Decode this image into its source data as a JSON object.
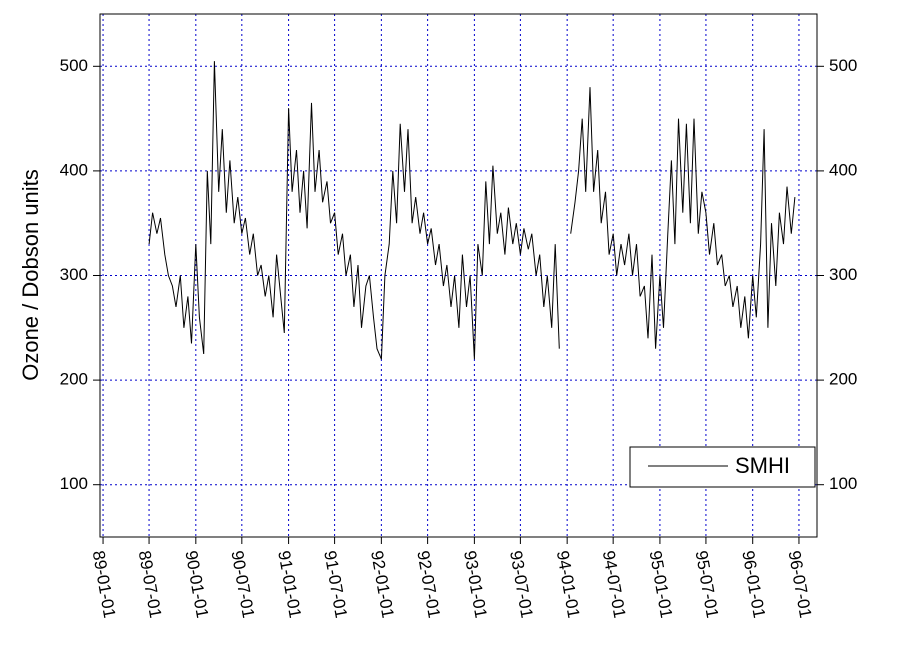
{
  "chart_data": {
    "type": "line",
    "y_label": "Ozone / Dobson units",
    "x": [
      "89-07-01",
      "89-07-15",
      "89-08-01",
      "89-08-15",
      "89-09-01",
      "89-09-15",
      "89-10-01",
      "89-10-15",
      "89-11-01",
      "89-11-15",
      "89-12-01",
      "89-12-15",
      "90-01-01",
      "90-01-15",
      "90-02-01",
      "90-02-15",
      "90-03-01",
      "90-03-15",
      "90-04-01",
      "90-04-15",
      "90-05-01",
      "90-05-15",
      "90-06-01",
      "90-06-15",
      "90-07-01",
      "90-07-15",
      "90-08-01",
      "90-08-15",
      "90-09-01",
      "90-09-15",
      "90-10-01",
      "90-10-15",
      "90-11-01",
      "90-11-15",
      "90-12-01",
      "90-12-15",
      "91-01-01",
      "91-01-15",
      "91-02-01",
      "91-02-15",
      "91-03-01",
      "91-03-15",
      "91-04-01",
      "91-04-15",
      "91-05-01",
      "91-05-15",
      "91-06-01",
      "91-06-15",
      "91-07-01",
      "91-07-15",
      "91-08-01",
      "91-08-15",
      "91-09-01",
      "91-09-15",
      "91-10-01",
      "91-10-15",
      "91-11-01",
      "91-11-15",
      "91-12-01",
      "91-12-15",
      "92-01-01",
      "92-01-15",
      "92-02-01",
      "92-02-15",
      "92-03-01",
      "92-03-15",
      "92-04-01",
      "92-04-15",
      "92-05-01",
      "92-05-15",
      "92-06-01",
      "92-06-15",
      "92-07-01",
      "92-07-15",
      "92-08-01",
      "92-08-15",
      "92-09-01",
      "92-09-15",
      "92-10-01",
      "92-10-15",
      "92-11-01",
      "92-11-15",
      "92-12-01",
      "92-12-15",
      "93-01-01",
      "93-01-15",
      "93-02-01",
      "93-02-15",
      "93-03-01",
      "93-03-15",
      "93-04-01",
      "93-04-15",
      "93-05-01",
      "93-05-15",
      "93-06-01",
      "93-06-15",
      "93-07-01",
      "93-07-15",
      "93-08-01",
      "93-08-15",
      "93-09-01",
      "93-09-15",
      "93-10-01",
      "93-10-15",
      "93-11-01",
      "93-11-15",
      "93-12-01",
      "93-12-15",
      "94-01-15",
      "94-02-01",
      "94-02-15",
      "94-03-01",
      "94-03-15",
      "94-04-01",
      "94-04-15",
      "94-05-01",
      "94-05-15",
      "94-06-01",
      "94-06-15",
      "94-07-01",
      "94-07-15",
      "94-08-01",
      "94-08-15",
      "94-09-01",
      "94-09-15",
      "94-10-01",
      "94-10-15",
      "94-11-01",
      "94-11-15",
      "94-12-01",
      "94-12-15",
      "95-01-01",
      "95-01-15",
      "95-02-01",
      "95-02-15",
      "95-03-01",
      "95-03-15",
      "95-04-01",
      "95-04-15",
      "95-05-01",
      "95-05-15",
      "95-06-01",
      "95-06-15",
      "95-07-01",
      "95-07-15",
      "95-08-01",
      "95-08-15",
      "95-09-01",
      "95-09-15",
      "95-10-01",
      "95-10-15",
      "95-11-01",
      "95-11-15",
      "95-12-01",
      "95-12-15",
      "96-01-01",
      "96-01-15",
      "96-02-01",
      "96-02-15",
      "96-03-01",
      "96-03-15",
      "96-04-01",
      "96-04-15",
      "96-05-01",
      "96-05-15",
      "96-06-01",
      "96-06-15"
    ],
    "series": [
      {
        "name": "SMHI",
        "color": "#000000",
        "values": [
          330,
          360,
          340,
          355,
          320,
          300,
          290,
          270,
          300,
          250,
          280,
          235,
          330,
          260,
          225,
          400,
          330,
          505,
          380,
          440,
          360,
          410,
          350,
          375,
          340,
          355,
          320,
          340,
          300,
          310,
          280,
          300,
          260,
          320,
          280,
          245,
          460,
          380,
          420,
          360,
          400,
          345,
          465,
          380,
          420,
          370,
          390,
          350,
          360,
          320,
          340,
          300,
          320,
          270,
          310,
          250,
          290,
          300,
          260,
          230,
          220,
          300,
          330,
          400,
          350,
          445,
          380,
          440,
          350,
          375,
          340,
          360,
          330,
          345,
          310,
          330,
          290,
          310,
          270,
          300,
          250,
          320,
          270,
          300,
          220,
          330,
          300,
          390,
          330,
          405,
          340,
          360,
          320,
          365,
          330,
          350,
          320,
          345,
          325,
          340,
          300,
          320,
          270,
          300,
          250,
          330,
          230,
          null,
          340,
          370,
          400,
          450,
          380,
          480,
          380,
          420,
          350,
          380,
          320,
          340,
          300,
          330,
          310,
          340,
          300,
          330,
          280,
          290,
          240,
          320,
          230,
          300,
          250,
          340,
          410,
          330,
          450,
          360,
          445,
          350,
          450,
          340,
          380,
          360,
          320,
          350,
          310,
          320,
          290,
          300,
          270,
          290,
          250,
          280,
          240,
          300,
          260,
          330,
          440,
          250,
          350,
          290,
          360,
          330,
          385,
          340,
          375
        ]
      }
    ],
    "xlim": [
      "88-12-20",
      "96-09-10"
    ],
    "xticks": [
      "89-01-01",
      "89-07-01",
      "90-01-01",
      "90-07-01",
      "91-01-01",
      "91-07-01",
      "92-01-01",
      "92-07-01",
      "93-01-01",
      "93-07-01",
      "94-01-01",
      "94-07-01",
      "95-01-01",
      "95-07-01",
      "96-01-01",
      "96-07-01"
    ],
    "ylim": [
      50,
      550
    ],
    "yticks": [
      100,
      200,
      300,
      400,
      500
    ],
    "grid": true,
    "grid_color": "#0000cc",
    "legend": "lower right"
  }
}
